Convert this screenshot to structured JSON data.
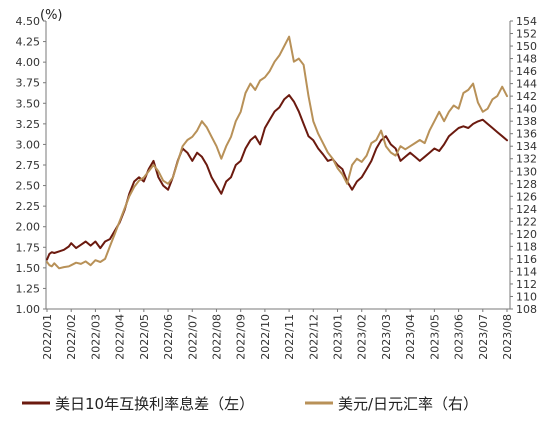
{
  "chart_data": {
    "type": "line",
    "unit_label": "(%)",
    "x_tick_labels": [
      "2022/01",
      "2022/02",
      "2022/03",
      "2022/04",
      "2022/05",
      "2022/06",
      "2022/07",
      "2022/08",
      "2022/09",
      "2022/10",
      "2022/11",
      "2022/12",
      "2023/01",
      "2023/02",
      "2023/03",
      "2023/04",
      "2023/05",
      "2023/06",
      "2023/07",
      "2023/08"
    ],
    "y_left": {
      "min": 1.0,
      "max": 4.5,
      "step": 0.25,
      "ticks": [
        "1.00",
        "1.25",
        "1.50",
        "1.75",
        "2.00",
        "2.25",
        "2.50",
        "2.75",
        "3.00",
        "3.25",
        "3.50",
        "3.75",
        "4.00",
        "4.25",
        "4.50"
      ]
    },
    "y_right": {
      "min": 108,
      "max": 154,
      "step": 2,
      "ticks": [
        "108",
        "110",
        "112",
        "114",
        "116",
        "118",
        "120",
        "122",
        "124",
        "126",
        "128",
        "130",
        "132",
        "134",
        "136",
        "138",
        "140",
        "142",
        "144",
        "146",
        "148",
        "150",
        "152",
        "154"
      ]
    },
    "legend_position": "bottom",
    "grid": false,
    "series": [
      {
        "name": "美日10年互换利率息差（左）",
        "axis": "left",
        "color": "#6b1a0f",
        "x": [
          0,
          0.1,
          0.2,
          0.3,
          0.5,
          0.7,
          0.9,
          1.0,
          1.2,
          1.4,
          1.6,
          1.8,
          2.0,
          2.2,
          2.4,
          2.6,
          2.8,
          3.0,
          3.2,
          3.4,
          3.6,
          3.8,
          4.0,
          4.2,
          4.4,
          4.6,
          4.8,
          5.0,
          5.2,
          5.4,
          5.6,
          5.8,
          6.0,
          6.2,
          6.4,
          6.6,
          6.8,
          7.0,
          7.2,
          7.4,
          7.6,
          7.8,
          8.0,
          8.2,
          8.4,
          8.6,
          8.8,
          9.0,
          9.2,
          9.4,
          9.6,
          9.8,
          10.0,
          10.2,
          10.4,
          10.6,
          10.8,
          11.0,
          11.2,
          11.4,
          11.6,
          11.8,
          12.0,
          12.2,
          12.4,
          12.6,
          12.8,
          13.0,
          13.2,
          13.4,
          13.6,
          13.8,
          14.0,
          14.2,
          14.4,
          14.6,
          14.8,
          15.0,
          15.2,
          15.4,
          15.6,
          15.8,
          16.0,
          16.2,
          16.4,
          16.6,
          16.8,
          17.0,
          17.2,
          17.4,
          17.6,
          17.8,
          18.0,
          18.2,
          18.4,
          18.6,
          18.8,
          19.0
        ],
        "y": [
          1.6,
          1.67,
          1.69,
          1.68,
          1.7,
          1.72,
          1.76,
          1.8,
          1.74,
          1.78,
          1.82,
          1.77,
          1.82,
          1.74,
          1.82,
          1.85,
          1.95,
          2.05,
          2.2,
          2.4,
          2.55,
          2.6,
          2.55,
          2.7,
          2.8,
          2.6,
          2.5,
          2.45,
          2.6,
          2.8,
          2.95,
          2.9,
          2.8,
          2.9,
          2.85,
          2.75,
          2.6,
          2.5,
          2.4,
          2.55,
          2.6,
          2.75,
          2.8,
          2.95,
          3.05,
          3.1,
          3.0,
          3.2,
          3.3,
          3.4,
          3.45,
          3.55,
          3.6,
          3.52,
          3.4,
          3.25,
          3.1,
          3.05,
          2.95,
          2.88,
          2.8,
          2.82,
          2.75,
          2.7,
          2.55,
          2.45,
          2.55,
          2.6,
          2.7,
          2.8,
          2.95,
          3.05,
          3.1,
          3.0,
          2.95,
          2.8,
          2.85,
          2.9,
          2.85,
          2.8,
          2.85,
          2.9,
          2.95,
          2.92,
          3.0,
          3.1,
          3.15,
          3.2,
          3.22,
          3.2,
          3.25,
          3.28,
          3.3,
          3.25,
          3.2,
          3.15,
          3.1,
          3.05
        ]
      },
      {
        "name": "美元/日元汇率（右）",
        "axis": "right",
        "color": "#b89158",
        "x": [
          0,
          0.1,
          0.2,
          0.3,
          0.5,
          0.7,
          0.9,
          1.0,
          1.2,
          1.4,
          1.6,
          1.8,
          2.0,
          2.2,
          2.4,
          2.6,
          2.8,
          3.0,
          3.2,
          3.4,
          3.6,
          3.8,
          4.0,
          4.2,
          4.4,
          4.6,
          4.8,
          5.0,
          5.2,
          5.4,
          5.6,
          5.8,
          6.0,
          6.2,
          6.4,
          6.6,
          6.8,
          7.0,
          7.2,
          7.4,
          7.6,
          7.8,
          8.0,
          8.2,
          8.4,
          8.6,
          8.8,
          9.0,
          9.2,
          9.4,
          9.6,
          9.8,
          10.0,
          10.2,
          10.4,
          10.6,
          10.8,
          11.0,
          11.2,
          11.4,
          11.6,
          11.8,
          12.0,
          12.2,
          12.4,
          12.6,
          12.8,
          13.0,
          13.2,
          13.4,
          13.6,
          13.8,
          14.0,
          14.2,
          14.4,
          14.6,
          14.8,
          15.0,
          15.2,
          15.4,
          15.6,
          15.8,
          16.0,
          16.2,
          16.4,
          16.6,
          16.8,
          17.0,
          17.2,
          17.4,
          17.6,
          17.8,
          18.0,
          18.2,
          18.4,
          18.6,
          18.8,
          19.0
        ],
        "y": [
          115.5,
          115.0,
          114.8,
          115.3,
          114.5,
          114.7,
          114.8,
          115.0,
          115.4,
          115.2,
          115.6,
          115.0,
          115.8,
          115.5,
          116.0,
          118.0,
          120.0,
          122.0,
          124.0,
          126.0,
          127.5,
          128.5,
          129.0,
          130.0,
          131.0,
          130.0,
          128.5,
          128.0,
          129.0,
          131.5,
          134.0,
          135.0,
          135.5,
          136.5,
          138.0,
          137.0,
          135.5,
          134.0,
          132.0,
          134.0,
          135.5,
          138.0,
          139.5,
          142.5,
          144.0,
          143.0,
          144.5,
          145.0,
          146.0,
          147.5,
          148.5,
          150.0,
          151.5,
          147.5,
          148.0,
          147.0,
          142.0,
          138.0,
          136.0,
          134.5,
          133.0,
          132.0,
          130.5,
          129.5,
          128.0,
          131.0,
          132.0,
          131.5,
          132.5,
          134.5,
          135.0,
          136.5,
          134.0,
          133.0,
          132.5,
          134.0,
          133.5,
          134.0,
          134.5,
          135.0,
          134.5,
          136.5,
          138.0,
          139.5,
          138.0,
          139.5,
          140.5,
          140.0,
          142.5,
          143.0,
          144.0,
          141.0,
          139.5,
          140.0,
          141.5,
          142.0,
          143.5,
          142.0
        ]
      }
    ]
  }
}
